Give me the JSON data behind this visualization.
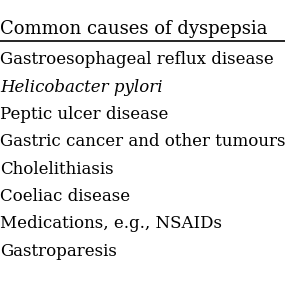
{
  "title": "Common causes of dyspepsia",
  "rows": [
    "Gastroesophageal reflux disease",
    "Helicobacter pylori",
    "Peptic ulcer disease",
    "Gastric cancer and other tumours",
    "Cholelithiasis",
    "Coeliac disease",
    "Medications, e.g., NSAIDs",
    "Gastroparesis"
  ],
  "italic_row": 1,
  "bg_color": "#ffffff",
  "text_color": "#000000",
  "title_fontsize": 13,
  "row_fontsize": 12,
  "line_color": "#000000"
}
